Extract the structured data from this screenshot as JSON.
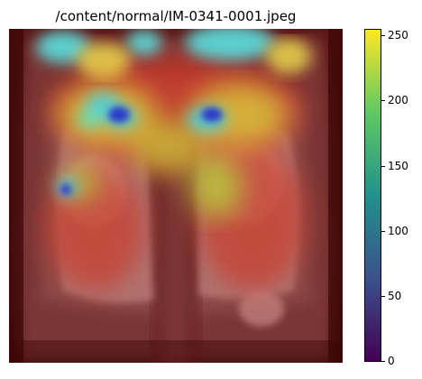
{
  "figure": {
    "title": "/content/normal/IM-0341-0001.jpeg"
  },
  "image": {
    "subject": "chest x-ray with heatmap overlay",
    "overlay_colormap": "jet",
    "background_color": "#4a0a0a"
  },
  "colorbar": {
    "colormap": "viridis",
    "min": 0,
    "max": 255,
    "ticks": [
      {
        "value": 0,
        "label": "0"
      },
      {
        "value": 50,
        "label": "50"
      },
      {
        "value": 100,
        "label": "100"
      },
      {
        "value": 150,
        "label": "150"
      },
      {
        "value": 200,
        "label": "200"
      },
      {
        "value": 250,
        "label": "250"
      }
    ],
    "colors": [
      "#440154",
      "#3b528b",
      "#21918c",
      "#5ec962",
      "#fde725"
    ]
  }
}
